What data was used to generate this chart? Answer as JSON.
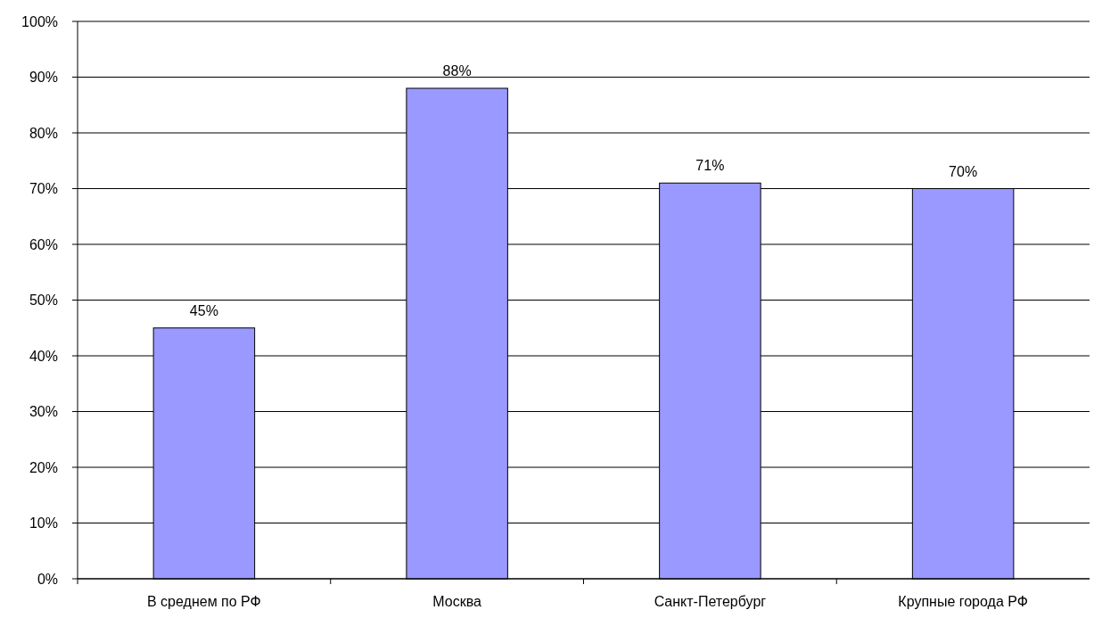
{
  "chart_data": {
    "type": "bar",
    "categories": [
      "В среднем по РФ",
      "Москва",
      "Санкт-Петербург",
      "Крупные города РФ"
    ],
    "values": [
      45,
      88,
      71,
      70
    ],
    "value_labels": [
      "45%",
      "88%",
      "71%",
      "70%"
    ],
    "color": "#9999ff",
    "ylim": [
      0,
      100
    ],
    "yticks": [
      {
        "value": 0,
        "label": "0%"
      },
      {
        "value": 10,
        "label": "10%"
      },
      {
        "value": 20,
        "label": "20%"
      },
      {
        "value": 30,
        "label": "30%"
      },
      {
        "value": 40,
        "label": "40%"
      },
      {
        "value": 50,
        "label": "50%"
      },
      {
        "value": 60,
        "label": "60%"
      },
      {
        "value": 70,
        "label": "70%"
      },
      {
        "value": 80,
        "label": "80%"
      },
      {
        "value": 90,
        "label": "90%"
      },
      {
        "value": 100,
        "label": "100%"
      }
    ],
    "grid": "y"
  }
}
